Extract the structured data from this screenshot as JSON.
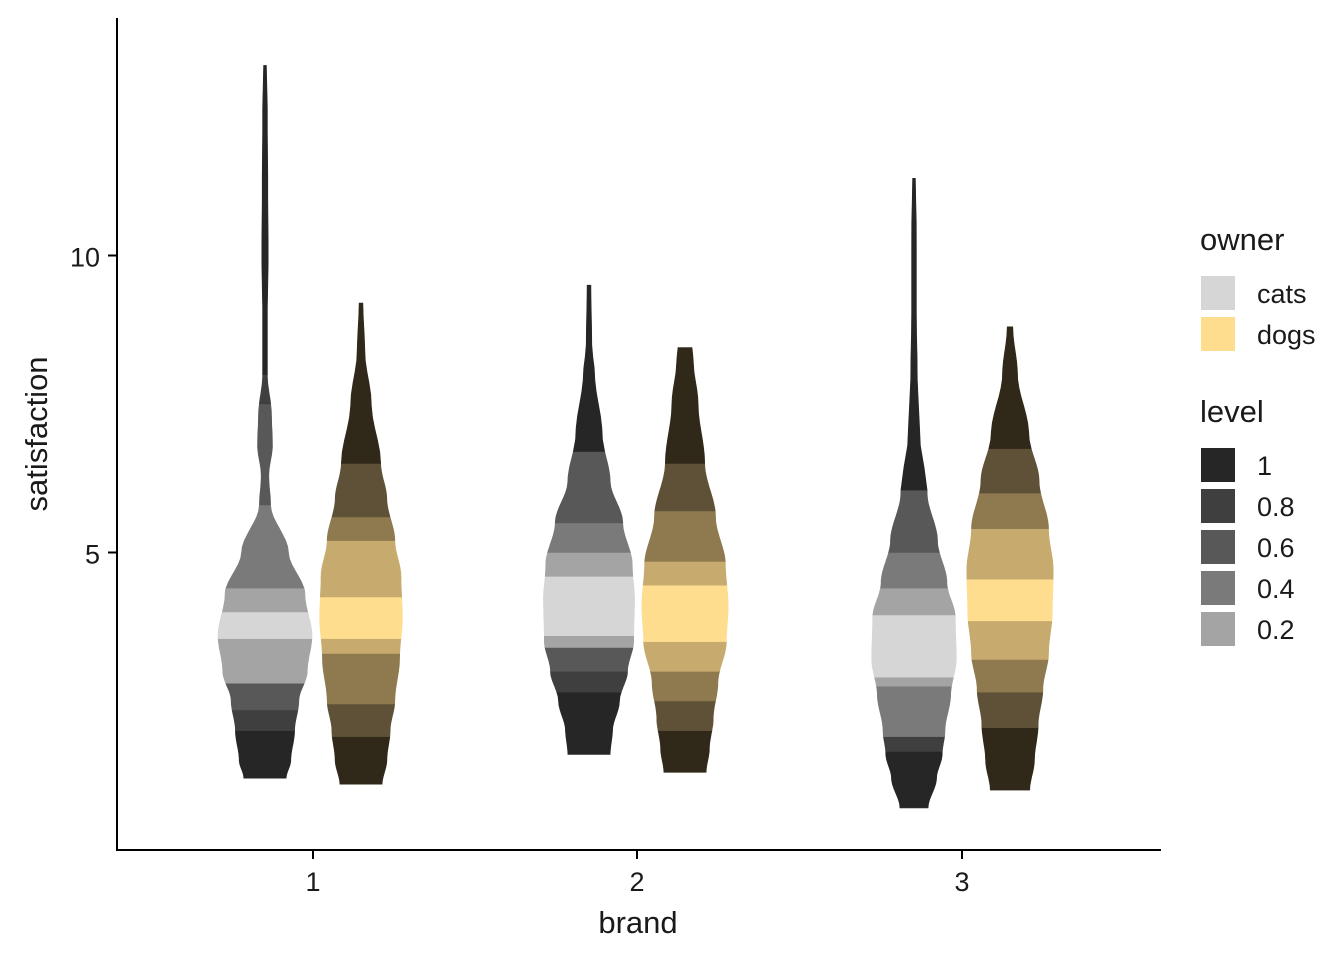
{
  "chart_data": {
    "type": "violin",
    "title": "",
    "xlabel": "brand",
    "ylabel": "satisfaction",
    "categories": [
      "1",
      "2",
      "3"
    ],
    "yticks": [
      5,
      10
    ],
    "ylim": [
      0,
      14
    ],
    "grid": false,
    "legend_placement": "right",
    "legend_owner": {
      "title": "owner",
      "items": [
        {
          "label": "cats",
          "color": "#d6d6d6"
        },
        {
          "label": "dogs",
          "color": "#ffdd8f"
        }
      ]
    },
    "legend_level": {
      "title": "level",
      "items": [
        {
          "label": "1",
          "color": "#262626"
        },
        {
          "label": "0.8",
          "color": "#3f3f3f"
        },
        {
          "label": "0.6",
          "color": "#585858"
        },
        {
          "label": "0.4",
          "color": "#7a7a7a"
        },
        {
          "label": "0.2",
          "color": "#a4a4a4"
        }
      ]
    },
    "series": [
      {
        "name": "cats",
        "level_colors": [
          "#d6d6d6",
          "#a4a4a4",
          "#7a7a7a",
          "#585858",
          "#3f3f3f",
          "#262626"
        ],
        "violins": [
          {
            "category": "1",
            "profile": [
              [
                1.2,
                0.45
              ],
              [
                1.5,
                0.55
              ],
              [
                2.0,
                0.63
              ],
              [
                2.5,
                0.72
              ],
              [
                3.0,
                0.9
              ],
              [
                3.6,
                1.0
              ],
              [
                4.3,
                0.85
              ],
              [
                5.0,
                0.5
              ],
              [
                5.8,
                0.12
              ],
              [
                6.3,
                0.08
              ],
              [
                6.8,
                0.16
              ],
              [
                7.3,
                0.14
              ],
              [
                8.0,
                0.05
              ],
              [
                9.0,
                0.05
              ],
              [
                10.0,
                0.07
              ],
              [
                11.0,
                0.06
              ],
              [
                12.5,
                0.05
              ],
              [
                13.2,
                0.03
              ]
            ],
            "bands": [
              [
                1.2,
                2.0,
                5
              ],
              [
                2.0,
                2.35,
                4
              ],
              [
                2.35,
                2.8,
                3
              ],
              [
                2.8,
                3.55,
                1
              ],
              [
                3.55,
                4.0,
                0
              ],
              [
                4.0,
                4.4,
                1
              ],
              [
                4.4,
                5.8,
                2
              ],
              [
                5.8,
                7.5,
                3
              ],
              [
                7.5,
                8.0,
                4
              ],
              [
                8.0,
                13.2,
                5
              ]
            ]
          },
          {
            "category": "2",
            "profile": [
              [
                1.6,
                0.45
              ],
              [
                2.0,
                0.5
              ],
              [
                2.5,
                0.65
              ],
              [
                3.0,
                0.82
              ],
              [
                3.5,
                0.95
              ],
              [
                4.2,
                0.97
              ],
              [
                4.8,
                0.92
              ],
              [
                5.5,
                0.72
              ],
              [
                6.2,
                0.45
              ],
              [
                7.0,
                0.28
              ],
              [
                8.0,
                0.12
              ],
              [
                8.5,
                0.06
              ],
              [
                9.5,
                0.04
              ]
            ],
            "bands": [
              [
                1.6,
                2.65,
                5
              ],
              [
                2.65,
                3.0,
                4
              ],
              [
                3.0,
                3.4,
                3
              ],
              [
                3.4,
                3.6,
                1
              ],
              [
                3.6,
                4.6,
                0
              ],
              [
                4.6,
                5.0,
                1
              ],
              [
                5.0,
                5.5,
                2
              ],
              [
                5.5,
                6.7,
                3
              ],
              [
                6.7,
                9.5,
                5
              ]
            ]
          },
          {
            "category": "3",
            "profile": [
              [
                0.7,
                0.3
              ],
              [
                1.2,
                0.48
              ],
              [
                1.6,
                0.6
              ],
              [
                2.0,
                0.66
              ],
              [
                2.6,
                0.78
              ],
              [
                3.2,
                0.9
              ],
              [
                3.9,
                0.88
              ],
              [
                4.5,
                0.7
              ],
              [
                5.2,
                0.5
              ],
              [
                6.0,
                0.28
              ],
              [
                7.0,
                0.12
              ],
              [
                8.0,
                0.07
              ],
              [
                9.0,
                0.05
              ],
              [
                10.5,
                0.05
              ],
              [
                11.3,
                0.03
              ]
            ],
            "bands": [
              [
                0.7,
                1.65,
                5
              ],
              [
                1.65,
                1.9,
                4
              ],
              [
                1.9,
                2.75,
                2
              ],
              [
                2.75,
                2.9,
                1
              ],
              [
                2.9,
                3.95,
                0
              ],
              [
                3.95,
                4.4,
                1
              ],
              [
                4.4,
                5.0,
                2
              ],
              [
                5.0,
                6.05,
                3
              ],
              [
                6.05,
                11.3,
                5
              ]
            ]
          }
        ]
      },
      {
        "name": "dogs",
        "level_colors": [
          "#ffdd8f",
          "#c7ab6e",
          "#8f7a4f",
          "#5e5137",
          "#463c29",
          "#302818"
        ],
        "violins": [
          {
            "category": "1",
            "profile": [
              [
                1.1,
                0.45
              ],
              [
                1.5,
                0.55
              ],
              [
                2.0,
                0.62
              ],
              [
                2.5,
                0.72
              ],
              [
                3.2,
                0.82
              ],
              [
                3.9,
                0.88
              ],
              [
                4.6,
                0.85
              ],
              [
                5.2,
                0.72
              ],
              [
                5.9,
                0.55
              ],
              [
                6.5,
                0.42
              ],
              [
                7.5,
                0.22
              ],
              [
                8.4,
                0.08
              ],
              [
                9.2,
                0.04
              ]
            ],
            "bands": [
              [
                1.1,
                1.9,
                5
              ],
              [
                1.9,
                2.45,
                3
              ],
              [
                2.45,
                3.3,
                2
              ],
              [
                3.3,
                3.55,
                1
              ],
              [
                3.55,
                4.25,
                0
              ],
              [
                4.25,
                5.2,
                1
              ],
              [
                5.2,
                5.6,
                2
              ],
              [
                5.6,
                6.5,
                3
              ],
              [
                6.5,
                9.2,
                5
              ]
            ]
          },
          {
            "category": "2",
            "profile": [
              [
                1.3,
                0.45
              ],
              [
                1.7,
                0.52
              ],
              [
                2.2,
                0.6
              ],
              [
                2.8,
                0.7
              ],
              [
                3.5,
                0.88
              ],
              [
                4.1,
                0.92
              ],
              [
                4.8,
                0.86
              ],
              [
                5.6,
                0.65
              ],
              [
                6.5,
                0.42
              ],
              [
                7.5,
                0.28
              ],
              [
                8.2,
                0.18
              ],
              [
                8.45,
                0.15
              ]
            ],
            "bands": [
              [
                1.3,
                2.0,
                5
              ],
              [
                2.0,
                2.5,
                3
              ],
              [
                2.5,
                3.0,
                2
              ],
              [
                3.0,
                3.5,
                1
              ],
              [
                3.5,
                4.45,
                0
              ],
              [
                4.45,
                4.85,
                1
              ],
              [
                4.85,
                5.7,
                2
              ],
              [
                5.7,
                6.5,
                3
              ],
              [
                6.5,
                8.45,
                5
              ]
            ]
          },
          {
            "category": "3",
            "profile": [
              [
                1.0,
                0.42
              ],
              [
                1.5,
                0.52
              ],
              [
                2.1,
                0.6
              ],
              [
                2.7,
                0.7
              ],
              [
                3.3,
                0.82
              ],
              [
                4.0,
                0.9
              ],
              [
                4.7,
                0.92
              ],
              [
                5.4,
                0.82
              ],
              [
                6.2,
                0.62
              ],
              [
                7.0,
                0.4
              ],
              [
                8.0,
                0.16
              ],
              [
                8.8,
                0.06
              ]
            ],
            "bands": [
              [
                1.0,
                2.05,
                5
              ],
              [
                2.05,
                2.65,
                3
              ],
              [
                2.65,
                3.2,
                2
              ],
              [
                3.2,
                3.85,
                1
              ],
              [
                3.85,
                4.55,
                0
              ],
              [
                4.55,
                5.4,
                1
              ],
              [
                5.4,
                6.0,
                2
              ],
              [
                6.0,
                6.75,
                3
              ],
              [
                6.75,
                8.8,
                5
              ]
            ]
          }
        ]
      }
    ]
  }
}
